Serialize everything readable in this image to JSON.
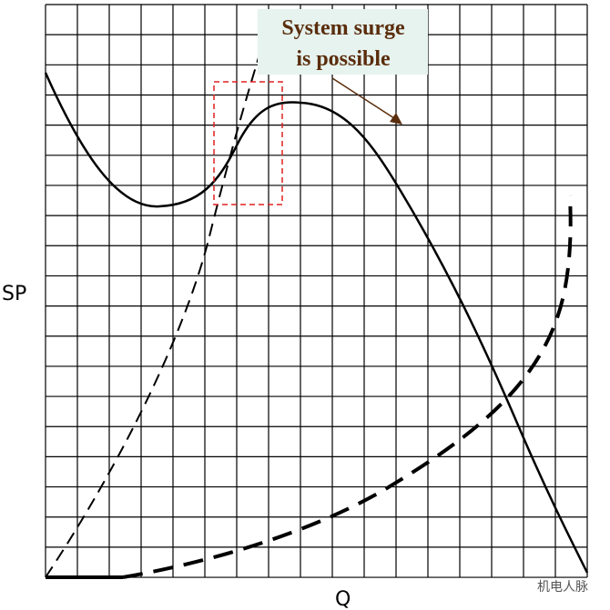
{
  "annotation": {
    "lines": [
      "System surge",
      "is possible"
    ]
  },
  "axes": {
    "y_label": "SP",
    "x_label": "Q"
  },
  "watermark": "机电人脉"
}
